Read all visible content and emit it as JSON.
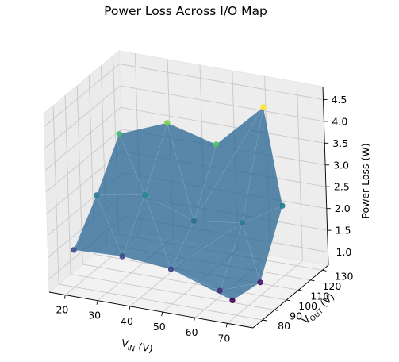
{
  "chart_data": {
    "type": "surface3d",
    "title": "Power Loss Across I/O Map",
    "xlabel": "V_IN (V)",
    "ylabel": "V_OUT (V)",
    "zlabel": "Power Loss (W)",
    "x_ticks": [
      20,
      30,
      40,
      50,
      60,
      70
    ],
    "y_ticks": [
      80,
      90,
      100,
      110,
      120,
      130
    ],
    "z_ticks": [
      "1.0",
      "1.5",
      "2.0",
      "2.5",
      "3.0",
      "3.5",
      "4.0",
      "4.5"
    ],
    "xlim": [
      15,
      78
    ],
    "ylim": [
      72,
      135
    ],
    "zlim": [
      0.7,
      4.8
    ],
    "grid": true,
    "colormap": "viridis",
    "surface_color": "#1f5f8f",
    "points": [
      {
        "x": 20,
        "y": 80,
        "z": 1.55
      },
      {
        "x": 20,
        "y": 100,
        "z": 2.35
      },
      {
        "x": 20,
        "y": 120,
        "z": 3.3
      },
      {
        "x": 35,
        "y": 80,
        "z": 1.6
      },
      {
        "x": 35,
        "y": 100,
        "z": 2.55
      },
      {
        "x": 35,
        "y": 120,
        "z": 3.75
      },
      {
        "x": 50,
        "y": 80,
        "z": 1.5
      },
      {
        "x": 50,
        "y": 100,
        "z": 2.15
      },
      {
        "x": 50,
        "y": 120,
        "z": 3.45
      },
      {
        "x": 65,
        "y": 80,
        "z": 1.2
      },
      {
        "x": 65,
        "y": 90,
        "z": 0.75
      },
      {
        "x": 65,
        "y": 100,
        "z": 2.3
      },
      {
        "x": 65,
        "y": 120,
        "z": 4.5
      },
      {
        "x": 70,
        "y": 100,
        "z": 1.0
      },
      {
        "x": 70,
        "y": 120,
        "z": 2.3
      }
    ],
    "triangles": [
      [
        0,
        1,
        3
      ],
      [
        1,
        4,
        3
      ],
      [
        1,
        2,
        4
      ],
      [
        2,
        5,
        4
      ],
      [
        3,
        4,
        6
      ],
      [
        4,
        7,
        6
      ],
      [
        4,
        5,
        7
      ],
      [
        5,
        8,
        7
      ],
      [
        6,
        9,
        10
      ],
      [
        6,
        7,
        11
      ],
      [
        6,
        11,
        9
      ],
      [
        7,
        12,
        11
      ],
      [
        7,
        8,
        12
      ],
      [
        9,
        11,
        13
      ],
      [
        9,
        13,
        10
      ],
      [
        11,
        12,
        14
      ],
      [
        11,
        14,
        13
      ]
    ]
  }
}
